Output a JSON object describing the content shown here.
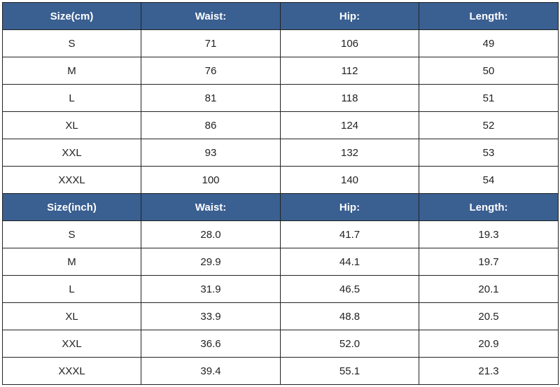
{
  "tables": [
    {
      "header": [
        "Size(cm)",
        "Waist:",
        "Hip:",
        "Length:"
      ],
      "rows": [
        [
          "S",
          "71",
          "106",
          "49"
        ],
        [
          "M",
          "76",
          "112",
          "50"
        ],
        [
          "L",
          "81",
          "118",
          "51"
        ],
        [
          "XL",
          "86",
          "124",
          "52"
        ],
        [
          "XXL",
          "93",
          "132",
          "53"
        ],
        [
          "XXXL",
          "100",
          "140",
          "54"
        ]
      ]
    },
    {
      "header": [
        "Size(inch)",
        "Waist:",
        "Hip:",
        "Length:"
      ],
      "rows": [
        [
          "S",
          "28.0",
          "41.7",
          "19.3"
        ],
        [
          "M",
          "29.9",
          "44.1",
          "19.7"
        ],
        [
          "L",
          "31.9",
          "46.5",
          "20.1"
        ],
        [
          "XL",
          "33.9",
          "48.8",
          "20.5"
        ],
        [
          "XXL",
          "36.6",
          "52.0",
          "20.9"
        ],
        [
          "XXXL",
          "39.4",
          "55.1",
          "21.3"
        ]
      ]
    }
  ]
}
